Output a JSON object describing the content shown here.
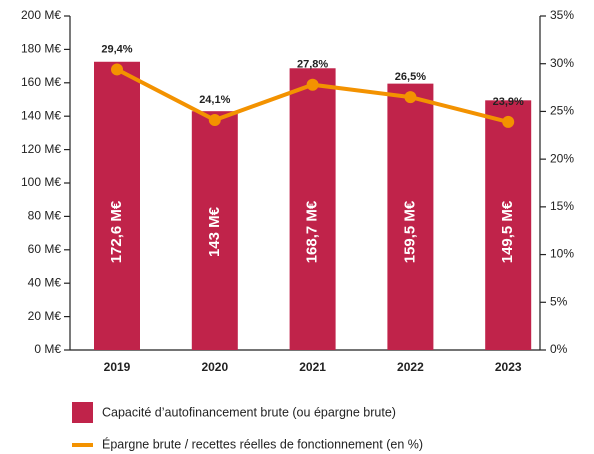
{
  "chart_data": {
    "type": "bar_line",
    "categories": [
      "2019",
      "2020",
      "2021",
      "2022",
      "2023"
    ],
    "series": [
      {
        "name": "Capacité  d’autofinancement brute (ou épargne brute)",
        "type": "bar",
        "color": "#c0234a",
        "values": [
          172.6,
          143,
          168.7,
          159.5,
          149.5
        ],
        "value_labels": [
          "172,6 M€",
          "143 M€",
          "168,7 M€",
          "159,5 M€",
          "149,5 M€"
        ]
      },
      {
        "name": "Épargne brute / recettes réelles de fonctionnement (en %)",
        "type": "line",
        "axis": "y2",
        "color": "#f39200",
        "values": [
          29.4,
          24.1,
          27.8,
          26.5,
          23.9
        ],
        "value_labels": [
          "29,4%",
          "24,1%",
          "27,8%",
          "26,5%",
          "23,9%"
        ]
      }
    ],
    "ylim": [
      0,
      200
    ],
    "yticks": [
      {
        "value": 0,
        "label": "0 M€"
      },
      {
        "value": 20,
        "label": "20 M€"
      },
      {
        "value": 40,
        "label": "40 M€"
      },
      {
        "value": 60,
        "label": "60 M€"
      },
      {
        "value": 80,
        "label": "80 M€"
      },
      {
        "value": 100,
        "label": "100 M€"
      },
      {
        "value": 120,
        "label": "120 M€"
      },
      {
        "value": 140,
        "label": "140 M€"
      },
      {
        "value": 160,
        "label": "160 M€"
      },
      {
        "value": 180,
        "label": "180 M€"
      },
      {
        "value": 200,
        "label": "200 M€"
      }
    ],
    "y2lim": [
      0,
      35
    ],
    "y2ticks": [
      {
        "value": 0,
        "label": "0%"
      },
      {
        "value": 5,
        "label": "5%"
      },
      {
        "value": 10,
        "label": "10%"
      },
      {
        "value": 15,
        "label": "15%"
      },
      {
        "value": 20,
        "label": "20%"
      },
      {
        "value": 25,
        "label": "25%"
      },
      {
        "value": 30,
        "label": "30%"
      },
      {
        "value": 35,
        "label": "35%"
      }
    ],
    "legend": "bottom-left"
  }
}
